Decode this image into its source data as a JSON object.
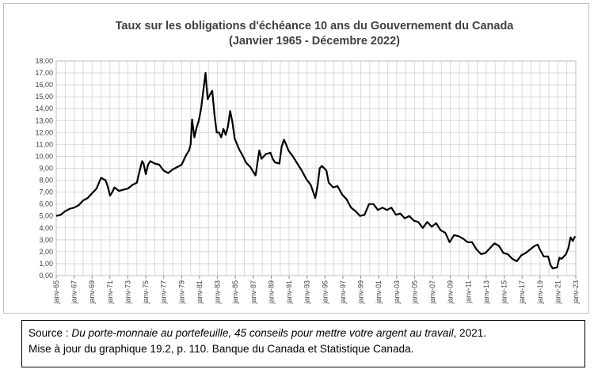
{
  "chart_data": {
    "type": "line",
    "title": "Taux sur les obligations d'échéance 10 ans du Gouvernement du Canada",
    "subtitle": "(Janvier 1965 - Décembre 2022)",
    "xlabel": "",
    "ylabel": "",
    "ylim": [
      0,
      18
    ],
    "xlim": [
      "1965-01",
      "2023-01"
    ],
    "y_tick_labels": [
      "0,00",
      "1,00",
      "2,00",
      "3,00",
      "4,00",
      "5,00",
      "6,00",
      "7,00",
      "8,00",
      "9,00",
      "10,00",
      "11,00",
      "12,00",
      "13,00",
      "14,00",
      "15,00",
      "16,00",
      "17,00",
      "18,00"
    ],
    "x_tick_labels": [
      "janv-65",
      "janv-67",
      "janv-69",
      "janv-71",
      "janv-73",
      "janv-75",
      "janv-77",
      "janv-79",
      "janv-81",
      "janv-83",
      "janv-85",
      "janv-87",
      "janv-89",
      "janv-91",
      "janv-93",
      "janv-95",
      "janv-97",
      "janv-99",
      "janv-01",
      "janv-03",
      "janv-05",
      "janv-07",
      "janv-09",
      "janv-11",
      "janv-13",
      "janv-15",
      "janv-17",
      "janv-19",
      "janv-21",
      "janv-23"
    ],
    "grid": true,
    "line_color": "#000000",
    "series": [
      {
        "x": [
          "1965-01",
          "1965-07",
          "1966-01",
          "1966-07",
          "1967-01",
          "1967-07",
          "1968-01",
          "1968-07",
          "1969-01",
          "1969-07",
          "1970-01",
          "1970-04",
          "1970-07",
          "1970-10",
          "1971-01",
          "1971-04",
          "1971-07",
          "1972-01",
          "1972-07",
          "1973-01",
          "1973-07",
          "1974-01",
          "1974-04",
          "1974-08",
          "1974-10",
          "1975-01",
          "1975-04",
          "1975-07",
          "1976-01",
          "1976-07",
          "1977-01",
          "1977-07",
          "1978-01",
          "1978-07",
          "1979-01",
          "1979-07",
          "1979-11",
          "1980-01",
          "1980-03",
          "1980-06",
          "1980-09",
          "1980-12",
          "1981-03",
          "1981-06",
          "1981-09",
          "1981-10",
          "1981-12",
          "1982-03",
          "1982-06",
          "1982-09",
          "1982-12",
          "1983-03",
          "1983-06",
          "1983-09",
          "1983-12",
          "1984-03",
          "1984-06",
          "1984-09",
          "1984-12",
          "1985-06",
          "1985-12",
          "1986-03",
          "1986-06",
          "1986-09",
          "1987-01",
          "1987-04",
          "1987-09",
          "1987-12",
          "1988-06",
          "1988-12",
          "1989-03",
          "1989-06",
          "1989-12",
          "1990-03",
          "1990-06",
          "1990-09",
          "1990-12",
          "1991-06",
          "1991-12",
          "1992-06",
          "1992-12",
          "1993-06",
          "1993-12",
          "1994-03",
          "1994-06",
          "1994-09",
          "1994-12",
          "1995-03",
          "1995-06",
          "1995-12",
          "1996-06",
          "1996-12",
          "1997-06",
          "1997-12",
          "1998-06",
          "1998-12",
          "1999-06",
          "1999-12",
          "2000-06",
          "2000-12",
          "2001-06",
          "2001-12",
          "2002-06",
          "2002-12",
          "2003-06",
          "2003-12",
          "2004-06",
          "2004-12",
          "2005-06",
          "2005-12",
          "2006-06",
          "2006-12",
          "2007-06",
          "2007-12",
          "2008-06",
          "2008-12",
          "2009-06",
          "2009-12",
          "2010-06",
          "2010-12",
          "2011-06",
          "2011-12",
          "2012-06",
          "2012-12",
          "2013-06",
          "2013-12",
          "2014-06",
          "2014-12",
          "2015-06",
          "2015-12",
          "2016-06",
          "2016-12",
          "2017-06",
          "2017-12",
          "2018-06",
          "2018-10",
          "2018-12",
          "2019-06",
          "2019-12",
          "2020-03",
          "2020-06",
          "2020-12",
          "2021-03",
          "2021-06",
          "2021-12",
          "2022-03",
          "2022-06",
          "2022-09",
          "2022-12"
        ],
        "values": [
          5.0,
          5.1,
          5.4,
          5.6,
          5.7,
          5.9,
          6.3,
          6.5,
          6.9,
          7.3,
          8.2,
          8.1,
          8.0,
          7.5,
          6.7,
          7.0,
          7.4,
          7.1,
          7.2,
          7.3,
          7.6,
          7.8,
          8.6,
          9.6,
          9.4,
          8.5,
          9.3,
          9.6,
          9.4,
          9.3,
          8.8,
          8.6,
          8.9,
          9.1,
          9.3,
          10.1,
          10.5,
          11.0,
          13.1,
          11.6,
          12.4,
          13.0,
          14.0,
          15.5,
          17.0,
          16.2,
          14.8,
          15.2,
          15.5,
          13.5,
          12.0,
          12.0,
          11.6,
          12.3,
          11.8,
          12.5,
          13.8,
          12.9,
          11.5,
          10.6,
          9.9,
          9.5,
          9.3,
          9.1,
          8.7,
          8.4,
          10.5,
          9.8,
          10.2,
          10.3,
          9.8,
          9.5,
          9.4,
          10.8,
          11.4,
          11.0,
          10.5,
          10.0,
          9.4,
          8.8,
          8.1,
          7.6,
          6.5,
          7.5,
          9.0,
          9.2,
          9.0,
          8.8,
          7.8,
          7.4,
          7.5,
          6.8,
          6.4,
          5.7,
          5.4,
          5.0,
          5.1,
          6.0,
          6.0,
          5.5,
          5.7,
          5.5,
          5.7,
          5.1,
          5.2,
          4.8,
          5.0,
          4.6,
          4.5,
          4.0,
          4.5,
          4.1,
          4.4,
          3.8,
          3.6,
          2.8,
          3.4,
          3.3,
          3.1,
          2.8,
          2.8,
          2.2,
          1.8,
          1.9,
          2.3,
          2.7,
          2.5,
          1.9,
          1.8,
          1.4,
          1.2,
          1.7,
          1.9,
          2.2,
          2.5,
          2.6,
          2.3,
          1.6,
          1.6,
          0.9,
          0.6,
          0.7,
          1.5,
          1.4,
          1.8,
          2.3,
          3.2,
          2.9,
          3.3
        ]
      }
    ]
  },
  "source": {
    "prefix": "Source : ",
    "title_italic": "Du porte-monnaie au portefeuille, 45 conseils pour mettre votre argent au travail",
    "suffix": ", 2021.",
    "line2": "Mise à jour du graphique 19.2, p. 110.  Banque du Canada et Statistique Canada."
  }
}
